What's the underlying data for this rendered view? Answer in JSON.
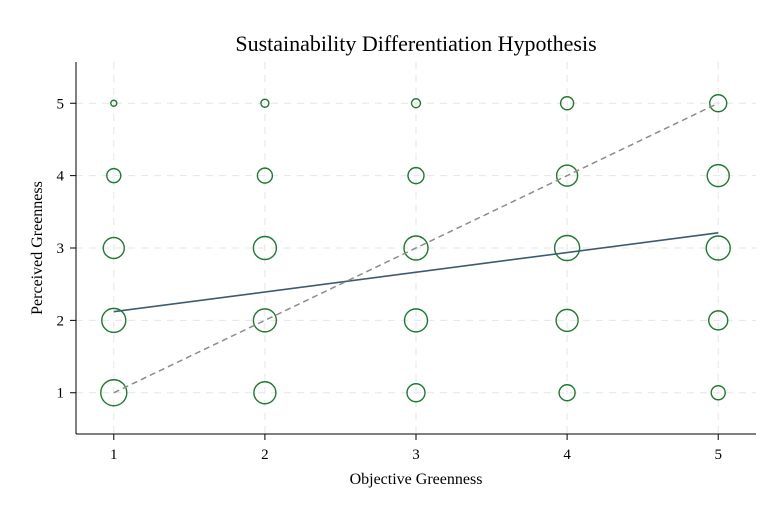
{
  "chart_data": {
    "type": "scatter",
    "title": "Sustainability Differentiation Hypothesis",
    "xlabel": "Objective Greenness",
    "ylabel": "Perceived Greenness",
    "x_ticks": [
      "1",
      "2",
      "3",
      "4",
      "5"
    ],
    "y_ticks": [
      "1",
      "2",
      "3",
      "4",
      "5"
    ],
    "xlim": [
      0.75,
      5.25
    ],
    "ylim": [
      0.43,
      5.57
    ],
    "grid": true,
    "marker_color": "#1e7b2e",
    "points": [
      {
        "x": 1,
        "y": 5,
        "weight": 0.3
      },
      {
        "x": 2,
        "y": 5,
        "weight": 0.4
      },
      {
        "x": 3,
        "y": 5,
        "weight": 0.45
      },
      {
        "x": 4,
        "y": 5,
        "weight": 0.65
      },
      {
        "x": 5,
        "y": 5,
        "weight": 0.85
      },
      {
        "x": 1,
        "y": 4,
        "weight": 0.7
      },
      {
        "x": 2,
        "y": 4,
        "weight": 0.75
      },
      {
        "x": 3,
        "y": 4,
        "weight": 0.8
      },
      {
        "x": 4,
        "y": 4,
        "weight": 1.05
      },
      {
        "x": 5,
        "y": 4,
        "weight": 1.1
      },
      {
        "x": 1,
        "y": 3,
        "weight": 1.05
      },
      {
        "x": 2,
        "y": 3,
        "weight": 1.15
      },
      {
        "x": 3,
        "y": 3,
        "weight": 1.2
      },
      {
        "x": 4,
        "y": 3,
        "weight": 1.25
      },
      {
        "x": 5,
        "y": 3,
        "weight": 1.2
      },
      {
        "x": 1,
        "y": 2,
        "weight": 1.2
      },
      {
        "x": 2,
        "y": 2,
        "weight": 1.15
      },
      {
        "x": 3,
        "y": 2,
        "weight": 1.15
      },
      {
        "x": 4,
        "y": 2,
        "weight": 1.1
      },
      {
        "x": 5,
        "y": 2,
        "weight": 0.95
      },
      {
        "x": 1,
        "y": 1,
        "weight": 1.3
      },
      {
        "x": 2,
        "y": 1,
        "weight": 1.1
      },
      {
        "x": 3,
        "y": 1,
        "weight": 0.9
      },
      {
        "x": 4,
        "y": 1,
        "weight": 0.8
      },
      {
        "x": 5,
        "y": 1,
        "weight": 0.7
      }
    ],
    "series": [
      {
        "type": "line",
        "style": "solid",
        "color": "#3b5b72",
        "x": [
          1,
          5
        ],
        "y": [
          2.12,
          3.21
        ]
      },
      {
        "type": "line",
        "style": "dashed",
        "color": "#8c8c8c",
        "x": [
          1,
          5
        ],
        "y": [
          1,
          5
        ]
      }
    ]
  }
}
